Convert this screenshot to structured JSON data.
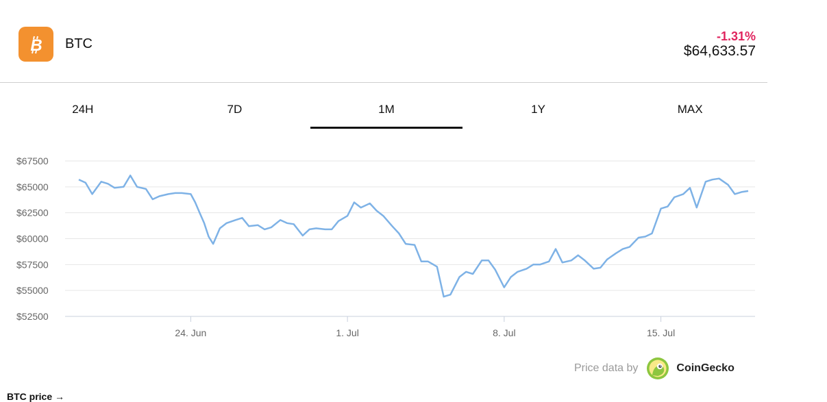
{
  "coin": {
    "symbol": "BTC",
    "change": "-1.31%",
    "price": "$64,633.57",
    "logo_color": "#f3912f",
    "change_color": "#e0245e"
  },
  "tabs": [
    {
      "label": "24H",
      "active": false
    },
    {
      "label": "7D",
      "active": false
    },
    {
      "label": "1M",
      "active": true
    },
    {
      "label": "1Y",
      "active": false
    },
    {
      "label": "MAX",
      "active": false
    }
  ],
  "chart_data": {
    "type": "line",
    "grid": true,
    "line_color": "#7eb2e6",
    "ylim": [
      52500,
      67500
    ],
    "y_ticks": [
      "$67500",
      "$65000",
      "$62500",
      "$60000",
      "$57500",
      "$55000",
      "$52500"
    ],
    "y_tick_values": [
      67500,
      65000,
      62500,
      60000,
      57500,
      55000,
      52500
    ],
    "x_ticks": [
      "24. Jun",
      "1. Jul",
      "8. Jul",
      "15. Jul"
    ],
    "x_tick_values": [
      24,
      31,
      38,
      45
    ],
    "xlim": [
      19.0,
      48.9
    ],
    "series": [
      {
        "x": [
          19.0,
          19.3,
          19.6,
          20.0,
          20.3,
          20.6,
          21.0,
          21.3,
          21.6,
          22.0,
          22.3,
          22.6,
          23.0,
          23.3,
          23.6,
          24.0,
          24.2,
          24.4,
          24.6,
          24.8,
          25.0,
          25.3,
          25.6,
          26.0,
          26.3,
          26.6,
          27.0,
          27.3,
          27.6,
          28.0,
          28.3,
          28.6,
          29.0,
          29.3,
          29.6,
          30.0,
          30.3,
          30.6,
          31.0,
          31.3,
          31.6,
          32.0,
          32.3,
          32.6,
          33.0,
          33.3,
          33.6,
          34.0,
          34.3,
          34.6,
          35.0,
          35.3,
          35.6,
          36.0,
          36.3,
          36.6,
          37.0,
          37.3,
          37.6,
          38.0,
          38.3,
          38.6,
          39.0,
          39.3,
          39.6,
          40.0,
          40.3,
          40.6,
          41.0,
          41.3,
          41.6,
          42.0,
          42.3,
          42.6,
          43.0,
          43.3,
          43.6,
          44.0,
          44.3,
          44.6,
          45.0,
          45.3,
          45.6,
          46.0,
          46.3,
          46.6,
          47.0,
          47.3,
          47.6,
          48.0,
          48.3,
          48.6,
          48.9
        ],
        "y": [
          65700,
          65400,
          64300,
          65500,
          65300,
          64900,
          65000,
          66100,
          65000,
          64800,
          63800,
          64100,
          64300,
          64400,
          64400,
          64300,
          63500,
          62500,
          61500,
          60200,
          59500,
          61000,
          61500,
          61800,
          62000,
          61200,
          61300,
          60900,
          61100,
          61800,
          61500,
          61400,
          60300,
          60900,
          61000,
          60900,
          60900,
          61700,
          62200,
          63500,
          63000,
          63400,
          62700,
          62200,
          61200,
          60500,
          59500,
          59400,
          57800,
          57800,
          57300,
          54400,
          54600,
          56300,
          56800,
          56600,
          57900,
          57900,
          57000,
          55300,
          56300,
          56800,
          57100,
          57500,
          57500,
          57800,
          59000,
          57700,
          57900,
          58400,
          57900,
          57100,
          57200,
          58000,
          58600,
          59000,
          59200,
          60100,
          60200,
          60500,
          62900,
          63100,
          64000,
          64300,
          64900,
          63000,
          65500,
          65700,
          65800,
          65200,
          64300,
          64500,
          64600
        ]
      }
    ]
  },
  "attribution": {
    "text": "Price data by",
    "provider": "CoinGecko"
  },
  "bottom": {
    "link_text": "BTC price →"
  }
}
